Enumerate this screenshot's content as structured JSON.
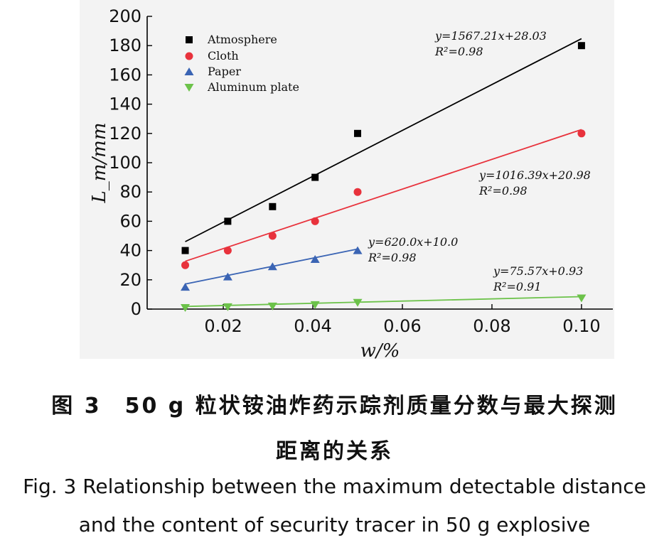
{
  "chart_data": {
    "type": "scatter",
    "xlabel": "w/%",
    "ylabel": "L_m/mm",
    "xlim": [
      0.003,
      0.107
    ],
    "ylim": [
      0,
      200
    ],
    "xticks": [
      "0.02",
      "0.04",
      "0.06",
      "0.08",
      "0.10"
    ],
    "xtick_values": [
      0.02,
      0.04,
      0.06,
      0.08,
      0.1
    ],
    "yticks": [
      "0",
      "20",
      "40",
      "60",
      "80",
      "100",
      "120",
      "140",
      "160",
      "180",
      "200"
    ],
    "ytick_values": [
      0,
      20,
      40,
      60,
      80,
      100,
      120,
      140,
      160,
      180,
      200
    ],
    "grid": false,
    "legend_position": "top-left",
    "series": [
      {
        "name": "Atmosphere",
        "marker": "square",
        "color": "#000000",
        "x": [
          0.0115,
          0.021,
          0.031,
          0.0405,
          0.05,
          0.1
        ],
        "y": [
          40,
          60,
          70,
          90,
          120,
          180
        ],
        "fit": {
          "slope": 1567.21,
          "intercept": 28.03,
          "x_range": [
            0.0115,
            0.1
          ]
        },
        "equation": "y=1567.21x+28.03",
        "r2": "R²=0.98"
      },
      {
        "name": "Cloth",
        "marker": "circle",
        "color": "#e8323c",
        "x": [
          0.0115,
          0.021,
          0.031,
          0.0405,
          0.05,
          0.1
        ],
        "y": [
          30,
          40,
          50,
          60,
          80,
          120
        ],
        "fit": {
          "slope": 1016.39,
          "intercept": 20.98,
          "x_range": [
            0.0115,
            0.1
          ]
        },
        "equation": "y=1016.39x+20.98",
        "r2": "R²=0.98"
      },
      {
        "name": "Paper",
        "marker": "triangle-up",
        "color": "#3a64b4",
        "x": [
          0.0115,
          0.021,
          0.031,
          0.0405,
          0.05
        ],
        "y": [
          15,
          22,
          29,
          34,
          40
        ],
        "fit": {
          "slope": 620.0,
          "intercept": 10.0,
          "x_range": [
            0.0115,
            0.05
          ]
        },
        "equation": "y=620.0x+10.0",
        "r2": "R²=0.98"
      },
      {
        "name": "Aluminum plate",
        "marker": "triangle-down",
        "color": "#6cc24a",
        "x": [
          0.0115,
          0.021,
          0.031,
          0.0405,
          0.05,
          0.1
        ],
        "y": [
          1,
          1.5,
          2,
          3,
          4.5,
          7.5
        ],
        "fit": {
          "slope": 75.57,
          "intercept": 0.93,
          "x_range": [
            0.0115,
            0.1
          ]
        },
        "equation": "y=75.57x+0.93",
        "r2": "R²=0.91"
      }
    ]
  },
  "caption": {
    "cn_line1": "图 3　50 g 粒状铵油炸药示踪剂质量分数与最大探测",
    "cn_line2": "距离的关系",
    "en_line1": "Fig. 3 Relationship between the maximum detectable distance",
    "en_line2": "and the content of security tracer in 50 g explosive"
  }
}
